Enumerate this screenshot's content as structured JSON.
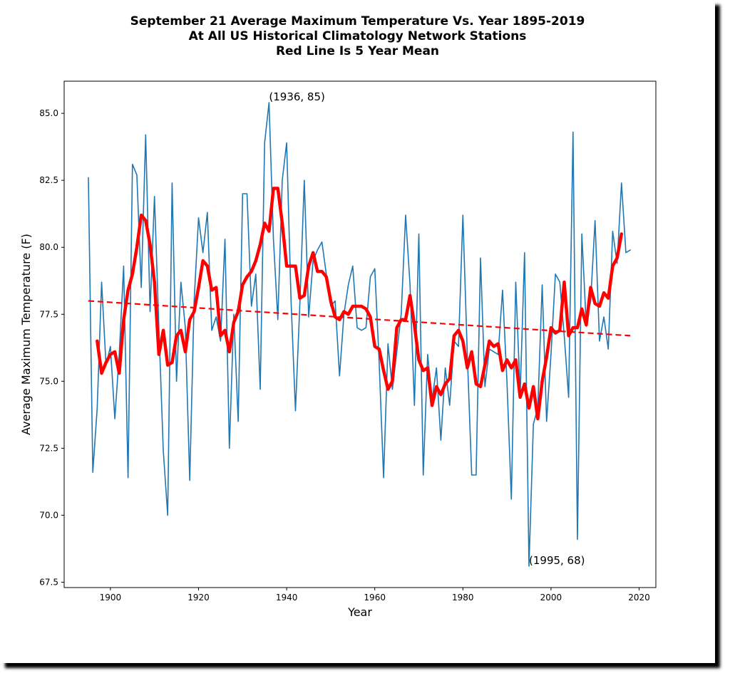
{
  "chart_data": {
    "type": "line",
    "title_lines": [
      "September 21 Average Maximum Temperature Vs. Year 1895-2019",
      "At All US Historical Climatology Network Stations",
      "Red Line Is 5 Year Mean"
    ],
    "xlabel": "Year",
    "ylabel": "Average Maximum Temperature (F)",
    "xlim": [
      1889.5,
      2023.8
    ],
    "ylim": [
      67.3,
      86.2
    ],
    "xticks": [
      1900,
      1920,
      1940,
      1960,
      1980,
      2000,
      2020
    ],
    "yticks": [
      67.5,
      70.0,
      72.5,
      75.0,
      77.5,
      80.0,
      82.5,
      85.0
    ],
    "ytick_labels": [
      "67.5",
      "70.0",
      "72.5",
      "75.0",
      "77.5",
      "80.0",
      "82.5",
      "85.0"
    ],
    "grid": false,
    "colors": {
      "annual": "#1f77b4",
      "mean": "#ff0000",
      "trend": "#ff0000"
    },
    "series": [
      {
        "key": "annual",
        "x": [
          1895,
          1896,
          1897,
          1898,
          1899,
          1900,
          1901,
          1902,
          1903,
          1904,
          1905,
          1906,
          1907,
          1908,
          1909,
          1910,
          1911,
          1912,
          1913,
          1914,
          1915,
          1916,
          1917,
          1918,
          1919,
          1920,
          1921,
          1922,
          1923,
          1924,
          1925,
          1926,
          1927,
          1928,
          1929,
          1930,
          1931,
          1932,
          1933,
          1934,
          1935,
          1936,
          1937,
          1938,
          1939,
          1940,
          1941,
          1942,
          1943,
          1944,
          1945,
          1946,
          1947,
          1948,
          1949,
          1950,
          1951,
          1952,
          1953,
          1954,
          1955,
          1956,
          1957,
          1958,
          1959,
          1960,
          1961,
          1962,
          1963,
          1964,
          1965,
          1966,
          1967,
          1968,
          1969,
          1970,
          1971,
          1972,
          1973,
          1974,
          1975,
          1976,
          1977,
          1978,
          1979,
          1980,
          1981,
          1982,
          1983,
          1984,
          1985,
          1986,
          1987,
          1988,
          1989,
          1990,
          1991,
          1992,
          1993,
          1994,
          1995,
          1996,
          1997,
          1998,
          1999,
          2000,
          2001,
          2002,
          2003,
          2004,
          2005,
          2006,
          2007,
          2008,
          2009,
          2010,
          2011,
          2012,
          2013,
          2014,
          2015,
          2016,
          2017,
          2018
        ],
        "y": [
          82.6,
          71.6,
          74.0,
          78.7,
          75.6,
          76.3,
          73.6,
          76.0,
          79.3,
          71.4,
          83.1,
          82.7,
          78.5,
          84.2,
          77.6,
          81.9,
          77.0,
          72.4,
          70.0,
          82.4,
          75.0,
          78.7,
          77.0,
          71.3,
          78.0,
          81.1,
          79.8,
          81.3,
          76.9,
          77.4,
          76.5,
          80.3,
          72.5,
          77.5,
          73.5,
          82.0,
          82.0,
          77.8,
          79.0,
          74.7,
          83.9,
          85.4,
          80.3,
          77.3,
          82.5,
          83.9,
          78.0,
          73.9,
          77.9,
          82.5,
          77.4,
          79.5,
          79.9,
          80.2,
          79.0,
          77.8,
          78.0,
          75.2,
          77.5,
          78.6,
          79.3,
          77.0,
          76.9,
          77.0,
          78.9,
          79.2,
          75.7,
          71.4,
          76.4,
          74.7,
          76.1,
          77.5,
          81.2,
          78.6,
          74.1,
          80.5,
          71.5,
          76.0,
          74.3,
          75.5,
          72.8,
          75.5,
          74.1,
          76.5,
          76.3,
          81.2,
          76.0,
          71.5,
          71.5,
          79.6,
          74.8,
          76.2,
          76.1,
          76.0,
          78.4,
          75.0,
          70.6,
          78.7,
          74.5,
          79.8,
          68.1,
          73.4,
          74.0,
          78.6,
          73.5,
          76.0,
          79.0,
          78.7,
          76.7,
          74.4,
          84.3,
          69.1,
          80.5,
          77.1,
          78.0,
          81.0,
          76.5,
          77.4,
          76.2,
          80.6,
          79.4,
          82.4,
          79.8,
          79.9
        ]
      },
      {
        "key": "mean",
        "x": [
          1897,
          1898,
          1899,
          1900,
          1901,
          1902,
          1903,
          1904,
          1905,
          1906,
          1907,
          1908,
          1909,
          1910,
          1911,
          1912,
          1913,
          1914,
          1915,
          1916,
          1917,
          1918,
          1919,
          1920,
          1921,
          1922,
          1923,
          1924,
          1925,
          1926,
          1927,
          1928,
          1929,
          1930,
          1931,
          1932,
          1933,
          1934,
          1935,
          1936,
          1937,
          1938,
          1939,
          1940,
          1941,
          1942,
          1943,
          1944,
          1945,
          1946,
          1947,
          1948,
          1949,
          1950,
          1951,
          1952,
          1953,
          1954,
          1955,
          1956,
          1957,
          1958,
          1959,
          1960,
          1961,
          1962,
          1963,
          1964,
          1965,
          1966,
          1967,
          1968,
          1969,
          1970,
          1971,
          1972,
          1973,
          1974,
          1975,
          1976,
          1977,
          1978,
          1979,
          1980,
          1981,
          1982,
          1983,
          1984,
          1985,
          1986,
          1987,
          1988,
          1989,
          1990,
          1991,
          1992,
          1993,
          1994,
          1995,
          1996,
          1997,
          1998,
          1999,
          2000,
          2001,
          2002,
          2003,
          2004,
          2005,
          2006,
          2007,
          2008,
          2009,
          2010,
          2011,
          2012,
          2013,
          2014,
          2015,
          2016
        ],
        "y": [
          76.5,
          75.3,
          75.7,
          76.0,
          76.1,
          75.3,
          77.3,
          78.4,
          79.0,
          80.0,
          81.2,
          81.0,
          80.1,
          78.7,
          76.0,
          76.9,
          75.6,
          75.7,
          76.7,
          76.9,
          76.1,
          77.3,
          77.6,
          78.5,
          79.5,
          79.3,
          78.4,
          78.5,
          76.7,
          76.9,
          76.1,
          77.2,
          77.6,
          78.6,
          78.9,
          79.1,
          79.5,
          80.1,
          80.9,
          80.6,
          82.2,
          82.2,
          80.9,
          79.3,
          79.3,
          79.3,
          78.1,
          78.2,
          79.3,
          79.8,
          79.1,
          79.1,
          78.9,
          78.0,
          77.4,
          77.3,
          77.6,
          77.5,
          77.8,
          77.8,
          77.8,
          77.7,
          77.4,
          76.3,
          76.2,
          75.4,
          74.7,
          75.0,
          77.0,
          77.3,
          77.3,
          78.2,
          77.1,
          75.8,
          75.4,
          75.5,
          74.1,
          74.8,
          74.5,
          74.9,
          75.1,
          76.7,
          76.9,
          76.5,
          75.5,
          76.1,
          74.9,
          74.8,
          75.6,
          76.5,
          76.3,
          76.4,
          75.4,
          75.8,
          75.5,
          75.8,
          74.4,
          74.9,
          74.0,
          74.8,
          73.6,
          75.0,
          75.9,
          77.0,
          76.8,
          76.9,
          78.7,
          76.7,
          77.0,
          77.0,
          77.7,
          77.1,
          78.5,
          77.9,
          77.8,
          78.3,
          78.1,
          79.3,
          79.6,
          80.5
        ]
      },
      {
        "key": "trend",
        "x": [
          1895,
          2018
        ],
        "y": [
          78.0,
          76.7
        ]
      }
    ],
    "annotations": [
      {
        "text": "(1936, 85)",
        "x": 1936,
        "y": 85.4
      },
      {
        "text": "(1995, 68)",
        "x": 1995,
        "y": 68.1
      }
    ]
  }
}
